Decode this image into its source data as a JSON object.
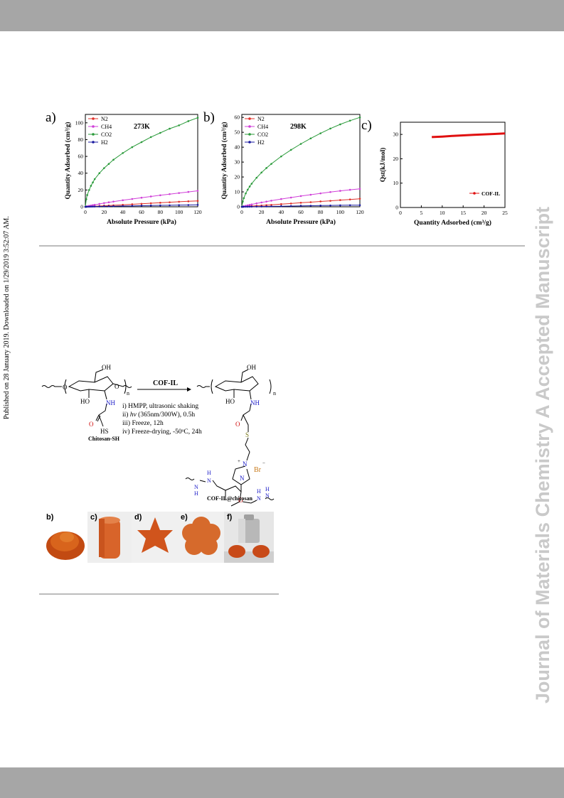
{
  "side_note": "Published on 28 January 2019. Downloaded on 1/29/2019 3:52:07 AM.",
  "watermark": "Journal of Materials Chemistry A Accepted Manuscript",
  "chart_data": [
    {
      "type": "line",
      "panel": "a)",
      "title": "273K",
      "xlabel": "Absolute Pressure (kPa)",
      "ylabel": "Quantity Adsorbed (cm³/g)",
      "xlim": [
        0,
        120
      ],
      "ylim": [
        0,
        110
      ],
      "xticks": [
        0,
        20,
        40,
        60,
        80,
        100,
        120
      ],
      "yticks": [
        0,
        20,
        40,
        60,
        80,
        100
      ],
      "legend": "top-left",
      "series": [
        {
          "name": "N2",
          "color": "#e0302a",
          "x": [
            0,
            1,
            2,
            4,
            6,
            8,
            10,
            15,
            20,
            25,
            30,
            40,
            50,
            60,
            70,
            80,
            90,
            100,
            110,
            120
          ],
          "y": [
            0,
            0.1,
            0.2,
            0.3,
            0.4,
            0.5,
            0.6,
            0.9,
            1.2,
            1.5,
            1.8,
            2.4,
            3,
            3.6,
            4.2,
            4.8,
            5.4,
            6,
            6.5,
            7
          ]
        },
        {
          "name": "CH4",
          "color": "#d040d8",
          "x": [
            0,
            1,
            2,
            4,
            6,
            8,
            10,
            15,
            20,
            25,
            30,
            40,
            50,
            60,
            70,
            80,
            90,
            100,
            110,
            120
          ],
          "y": [
            0,
            0.3,
            0.6,
            1.1,
            1.5,
            2,
            2.4,
            3.4,
            4.4,
            5.3,
            6.2,
            7.8,
            9.3,
            10.8,
            12.3,
            13.7,
            15.1,
            16.4,
            17.7,
            19
          ]
        },
        {
          "name": "CO2",
          "color": "#2a9a3a",
          "x": [
            0,
            1,
            2,
            4,
            6,
            8,
            10,
            15,
            20,
            25,
            30,
            40,
            50,
            60,
            70,
            80,
            90,
            100,
            110,
            120
          ],
          "y": [
            0,
            9,
            14,
            20,
            25,
            29,
            33,
            40,
            46,
            51,
            56,
            64,
            71,
            77,
            83,
            88,
            93,
            97,
            102,
            106
          ]
        },
        {
          "name": "H2",
          "color": "#1a1aa0",
          "x": [
            0,
            1,
            2,
            4,
            6,
            8,
            10,
            15,
            20,
            25,
            30,
            40,
            50,
            60,
            70,
            80,
            90,
            100,
            110,
            120
          ],
          "y": [
            0,
            0.05,
            0.1,
            0.15,
            0.2,
            0.25,
            0.3,
            0.4,
            0.5,
            0.6,
            0.7,
            0.9,
            1.1,
            1.3,
            1.5,
            1.7,
            1.8,
            2,
            2.1,
            2.3
          ]
        }
      ]
    },
    {
      "type": "line",
      "panel": "b)",
      "title": "298K",
      "xlabel": "Absolute Pressure (kPa)",
      "ylabel": "Quantity Adsorbed (cm³/g)",
      "xlim": [
        0,
        120
      ],
      "ylim": [
        0,
        62
      ],
      "xticks": [
        0,
        20,
        40,
        60,
        80,
        100,
        120
      ],
      "yticks": [
        0,
        10,
        20,
        30,
        40,
        50,
        60
      ],
      "legend": "top-left",
      "series": [
        {
          "name": "N2",
          "color": "#e0302a",
          "x": [
            0,
            1,
            2,
            4,
            6,
            8,
            10,
            15,
            20,
            25,
            30,
            40,
            50,
            60,
            70,
            80,
            90,
            100,
            110,
            120
          ],
          "y": [
            0,
            0.05,
            0.1,
            0.2,
            0.3,
            0.4,
            0.5,
            0.7,
            0.9,
            1.1,
            1.3,
            1.8,
            2.2,
            2.7,
            3.1,
            3.6,
            4,
            4.5,
            4.9,
            5.4
          ]
        },
        {
          "name": "CH4",
          "color": "#d040d8",
          "x": [
            0,
            1,
            2,
            4,
            6,
            8,
            10,
            15,
            20,
            25,
            30,
            40,
            50,
            60,
            70,
            80,
            90,
            100,
            110,
            120
          ],
          "y": [
            0,
            0.2,
            0.4,
            0.7,
            1,
            1.3,
            1.6,
            2.3,
            2.9,
            3.5,
            4.1,
            5.2,
            6.2,
            7.2,
            8.1,
            9,
            9.9,
            10.7,
            11.4,
            12
          ]
        },
        {
          "name": "CO2",
          "color": "#2a9a3a",
          "x": [
            0,
            1,
            2,
            4,
            6,
            8,
            10,
            15,
            20,
            25,
            30,
            40,
            50,
            60,
            70,
            80,
            90,
            100,
            110,
            120
          ],
          "y": [
            0,
            3.5,
            5.8,
            9,
            11.5,
            13.6,
            15.5,
            19.5,
            23,
            26,
            28.8,
            33.8,
            38.2,
            42.2,
            45.9,
            49.3,
            52.5,
            55.3,
            57.8,
            60
          ]
        },
        {
          "name": "H2",
          "color": "#1a1aa0",
          "x": [
            0,
            1,
            2,
            4,
            6,
            8,
            10,
            15,
            20,
            25,
            30,
            40,
            50,
            60,
            70,
            80,
            90,
            100,
            110,
            120
          ],
          "y": [
            0,
            0.02,
            0.04,
            0.06,
            0.08,
            0.1,
            0.12,
            0.15,
            0.2,
            0.25,
            0.3,
            0.4,
            0.5,
            0.6,
            0.7,
            0.8,
            0.9,
            1,
            1.05,
            1.1
          ]
        }
      ]
    },
    {
      "type": "line",
      "panel": "c)",
      "xlabel": "Quantity Adsorbed (cm³/g)",
      "ylabel": "Qst(kJ/mol)",
      "xlim": [
        0,
        25
      ],
      "ylim": [
        0,
        35
      ],
      "xticks": [
        0,
        5,
        10,
        15,
        20,
        25
      ],
      "yticks": [
        0,
        10,
        20,
        30
      ],
      "legend": "bottom-right",
      "series": [
        {
          "name": "COF-IL",
          "color": "#e01010",
          "x": [
            7.5,
            10,
            12.5,
            15,
            17.5,
            20,
            22.5,
            25
          ],
          "y": [
            28.9,
            29.1,
            29.4,
            29.6,
            29.8,
            30,
            30.2,
            30.4
          ]
        }
      ]
    }
  ],
  "scheme": {
    "arrow_label": "COF-IL",
    "step1": "i) HMPP, ultrasonic shaking",
    "step2_prefix": "ii) ",
    "step2_hv": "hν",
    "step2_rest": " (365nm/300W), 0.5h",
    "step3": "iii) Freeze, 12h",
    "step4": "iv) Freeze-drying, -50ᵒC, 24h",
    "reactant_label": "Chitosan-SH",
    "product_label": "COF-IL@chitosan",
    "oh": "OH",
    "ho": "HO",
    "o": "O",
    "nh": "NH",
    "hs": "HS",
    "s": "S",
    "n": "n",
    "n_plus": "N",
    "n_ring": "N",
    "br": "Br",
    "h": "H",
    "n_atom": "N",
    "plus": "+",
    "minus": "−"
  },
  "photos": [
    {
      "label": "b)"
    },
    {
      "label": "c)"
    },
    {
      "label": "d)"
    },
    {
      "label": "e)"
    },
    {
      "label": "f)"
    }
  ]
}
